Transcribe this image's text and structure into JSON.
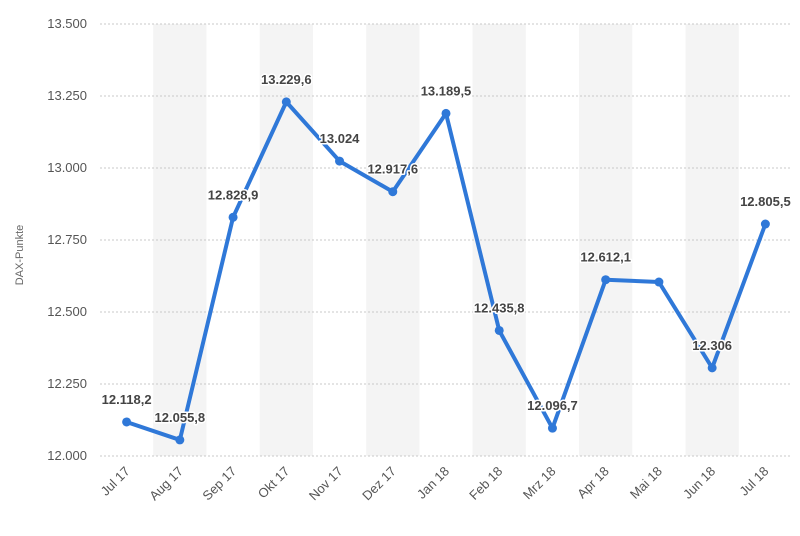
{
  "chart_data": {
    "type": "line",
    "title": "",
    "xlabel": "",
    "ylabel": "DAX-Punkte",
    "ylim": [
      12000,
      13500
    ],
    "yticks": [
      "12.000",
      "12.250",
      "12.500",
      "12.750",
      "13.000",
      "13.250",
      "13.500"
    ],
    "grid": true,
    "line_color": "#2f78d8",
    "band_color": "#f4f4f4",
    "categories": [
      "Jul 17",
      "Aug 17",
      "Sep 17",
      "Okt 17",
      "Nov 17",
      "Dez 17",
      "Jan 18",
      "Feb 18",
      "Mrz 18",
      "Apr 18",
      "Mai 18",
      "Jun 18",
      "Jul 18"
    ],
    "values": [
      12118.2,
      12055.8,
      12828.9,
      13229.6,
      13024,
      12917.6,
      13189.5,
      12435.8,
      12096.7,
      12612.1,
      12604.1,
      12306,
      12805.5
    ],
    "labels": [
      "12.118,2",
      "12.055,8",
      "12.828,9",
      "13.229,6",
      "13.024",
      "12.917,6",
      "13.189,5",
      "12.435,8",
      "12.096,7",
      "12.612,1",
      "",
      "12.306",
      "12.805,5"
    ]
  }
}
